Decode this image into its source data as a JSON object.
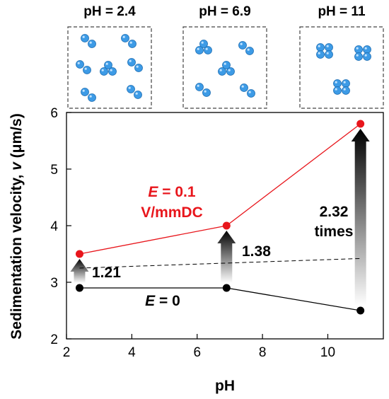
{
  "panels": [
    {
      "label": "pH = 2.4"
    },
    {
      "label": "pH = 6.9"
    },
    {
      "label": "pH = 11"
    }
  ],
  "chart_data": {
    "type": "line",
    "xlabel": "pH",
    "ylabel_prefix": "Sedimentation velocity,",
    "ylabel_symbol": "v",
    "ylabel_unit": "(μm/s)",
    "xlim": [
      2,
      11.7
    ],
    "ylim": [
      2,
      6
    ],
    "xticks": [
      2,
      4,
      6,
      8,
      10
    ],
    "yticks": [
      2,
      3,
      4,
      5,
      6
    ],
    "series": [
      {
        "name_symbol": "E",
        "name_value": "= 0.1",
        "name_unit": "V/mmDC",
        "color": "#e8161c",
        "x": [
          2.4,
          6.9,
          11
        ],
        "y": [
          3.5,
          4.0,
          5.8
        ]
      },
      {
        "name_symbol": "E",
        "name_value": "= 0",
        "color": "#000000",
        "x": [
          2.4,
          6.9,
          11
        ],
        "y": [
          2.9,
          2.9,
          2.5
        ]
      }
    ],
    "trend_line": {
      "style": "dashed",
      "x": [
        2.4,
        11
      ],
      "y": [
        3.25,
        3.42
      ]
    },
    "ratios": [
      {
        "x": 2.4,
        "from": 2.9,
        "to": 3.5,
        "label": "1.21"
      },
      {
        "x": 6.9,
        "from": 2.9,
        "to": 4.0,
        "label": "1.38"
      },
      {
        "x": 11,
        "from": 2.5,
        "to": 5.8,
        "label": "2.32",
        "label2": "times"
      }
    ]
  }
}
